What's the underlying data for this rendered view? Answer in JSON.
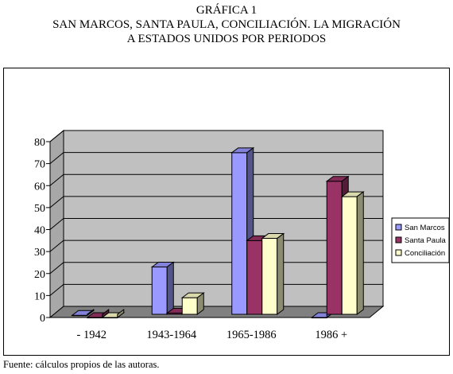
{
  "title_lines": [
    "GRÁFICA 1",
    "SAN MARCOS, SANTA PAULA, CONCILIACIÓN. LA MIGRACIÓN",
    "A ESTADOS UNIDOS POR PERIODOS"
  ],
  "source": "Fuente: cálculos propios de las autoras.",
  "chart_data": {
    "type": "bar",
    "categories": [
      "- 1942",
      "1943-1964",
      "1965-1986",
      "1986 +"
    ],
    "series": [
      {
        "name": "San Marcos",
        "values": [
          1,
          23,
          75,
          0
        ],
        "color": "#9999ff"
      },
      {
        "name": "Santa Paula",
        "values": [
          0,
          2,
          35,
          62
        ],
        "color": "#993366"
      },
      {
        "name": "Conciliación",
        "values": [
          0,
          9,
          36,
          55
        ],
        "color": "#ffffcc"
      }
    ],
    "ylim": [
      0,
      80
    ],
    "yticks": [
      "0",
      "10",
      "20",
      "30",
      "40",
      "50",
      "60",
      "70",
      "80"
    ],
    "grid": true,
    "legend_position": "right",
    "style": "3d-column"
  }
}
